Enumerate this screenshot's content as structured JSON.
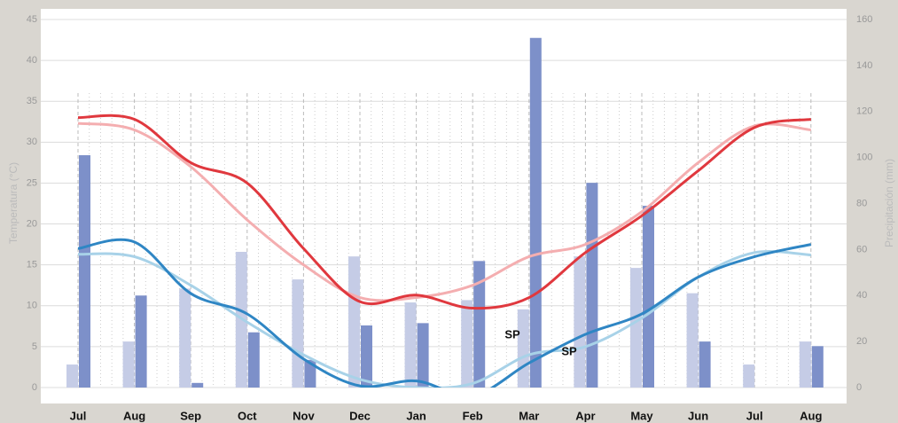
{
  "chart_data": {
    "type": "bar-line",
    "y_label": "Temperatura (°C)",
    "y2_label": "Precipitación (mm)",
    "categories": [
      "Jul",
      "Aug",
      "Sep",
      "Oct",
      "Nov",
      "Dec",
      "Jan",
      "Feb",
      "Mar",
      "Apr",
      "May",
      "Jun",
      "Jul",
      "Aug"
    ],
    "ylim": [
      0,
      45
    ],
    "yticks": [
      0,
      5,
      10,
      15,
      20,
      25,
      30,
      35,
      40,
      45
    ],
    "y2lim": [
      0,
      160
    ],
    "y2ticks": [
      0,
      20,
      40,
      60,
      80,
      100,
      120,
      140,
      160
    ],
    "grid": true,
    "series": [
      {
        "type": "bar",
        "axis": "y2",
        "color": "#c5cce6",
        "values": [
          10,
          20,
          43,
          59,
          47,
          57,
          37,
          38,
          34,
          57,
          52,
          41,
          10,
          20
        ]
      },
      {
        "type": "bar",
        "axis": "y2",
        "color": "#7d90c9",
        "values": [
          101,
          40,
          2,
          24,
          12,
          27,
          28,
          55,
          152,
          89,
          79,
          20,
          null,
          18
        ]
      },
      {
        "type": "line",
        "color": "#f4aeb0",
        "values": [
          32.3,
          31.5,
          27,
          20.5,
          15,
          11,
          11,
          12.5,
          16,
          17.5,
          21.5,
          27.5,
          32,
          31.5
        ]
      },
      {
        "type": "line",
        "color": "#a8d2e8",
        "values": [
          16.3,
          16,
          12.5,
          8,
          4,
          1,
          0,
          0.5,
          4,
          5,
          8.5,
          13.5,
          16.5,
          16.2
        ]
      },
      {
        "type": "line",
        "color": "#e0383e",
        "values": [
          33,
          32.8,
          27.5,
          25,
          17,
          10.5,
          11.3,
          9.7,
          11,
          16.5,
          21,
          26.5,
          31.8,
          32.8
        ]
      },
      {
        "type": "line",
        "color": "#2f86c4",
        "values": [
          17,
          17.8,
          11.5,
          9,
          3.5,
          0.2,
          0.8,
          -1,
          3,
          6.5,
          9,
          13.5,
          16,
          17.5
        ]
      }
    ],
    "annotations": [
      {
        "text": "SP",
        "category": 8
      },
      {
        "text": "SP",
        "category": 9
      }
    ]
  }
}
